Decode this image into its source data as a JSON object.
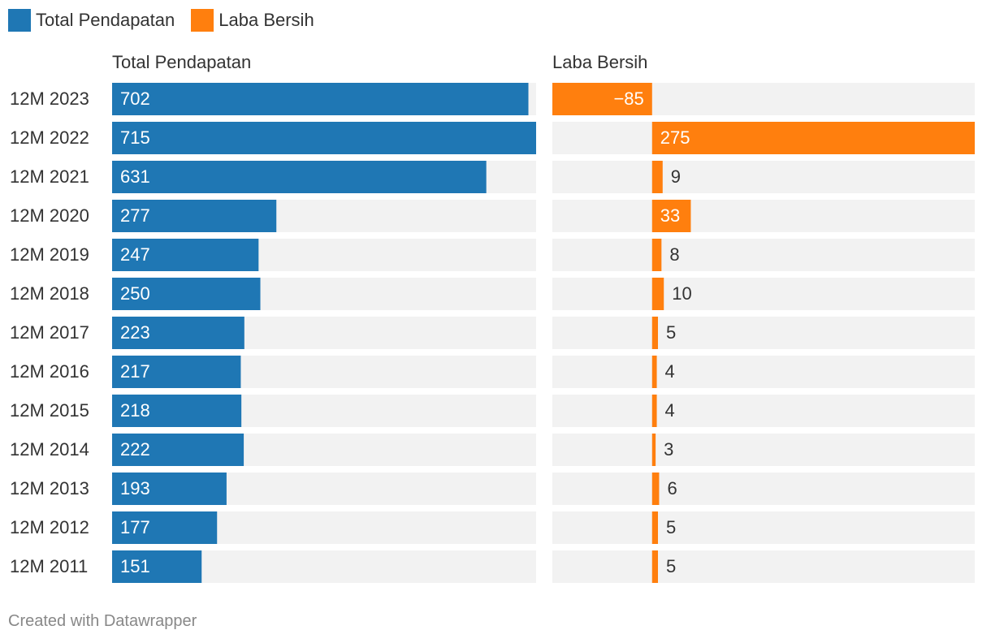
{
  "legend": [
    {
      "label": "Total Pendapatan",
      "color": "#1f77b4"
    },
    {
      "label": "Laba Bersih",
      "color": "#ff7f0e"
    }
  ],
  "footer": "Created with Datawrapper",
  "chart_data": {
    "type": "bar",
    "orientation": "horizontal",
    "categories": [
      "12M 2023",
      "12M 2022",
      "12M 2021",
      "12M 2020",
      "12M 2019",
      "12M 2018",
      "12M 2017",
      "12M 2016",
      "12M 2015",
      "12M 2014",
      "12M 2013",
      "12M 2012",
      "12M 2011"
    ],
    "series": [
      {
        "name": "Total Pendapatan",
        "color": "#1f77b4",
        "values": [
          702,
          715,
          631,
          277,
          247,
          250,
          223,
          217,
          218,
          222,
          193,
          177,
          151
        ],
        "xlim": [
          0,
          715
        ]
      },
      {
        "name": "Laba Bersih",
        "color": "#ff7f0e",
        "values": [
          -85,
          275,
          9,
          33,
          8,
          10,
          5,
          4,
          4,
          3,
          6,
          5,
          5
        ],
        "xlim": [
          -85,
          275
        ]
      }
    ],
    "value_labels": {
      "Total Pendapatan": [
        "702",
        "715",
        "631",
        "277",
        "247",
        "250",
        "223",
        "217",
        "218",
        "222",
        "193",
        "177",
        "151"
      ],
      "Laba Bersih": [
        "−85",
        "275",
        "9",
        "33",
        "8",
        "10",
        "5",
        "4",
        "4",
        "3",
        "6",
        "5",
        "5"
      ]
    },
    "background_color": "#f2f2f2"
  }
}
